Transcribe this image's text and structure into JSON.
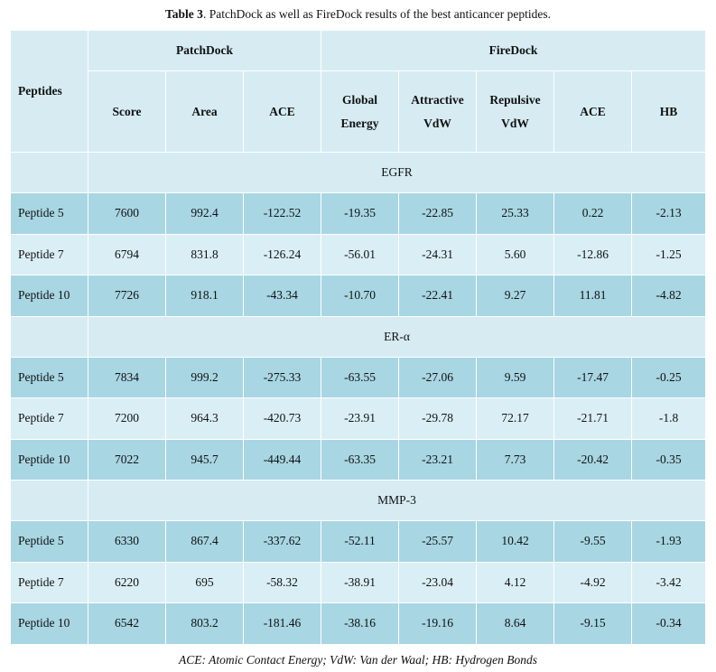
{
  "caption": {
    "label": "Table 3",
    "text": ". PatchDock as well as FireDock results of the best anticancer peptides."
  },
  "headers": {
    "peptides": "Peptides",
    "patchdock": "PatchDock",
    "firedock": "FireDock",
    "score": "Score",
    "area": "Area",
    "ace_pd": "ACE",
    "global_line1": "Global",
    "global_line2": "Energy",
    "attr_line1": "Attractive",
    "attr_line2": "VdW",
    "rep_line1": "Repulsive",
    "rep_line2": "VdW",
    "ace_fd": "ACE",
    "hb": "HB"
  },
  "sections": [
    {
      "name": "EGFR",
      "rows": [
        [
          "Peptide 5",
          "7600",
          "992.4",
          "-122.52",
          "-19.35",
          "-22.85",
          "25.33",
          "0.22",
          "-2.13"
        ],
        [
          "Peptide 7",
          "6794",
          "831.8",
          "-126.24",
          "-56.01",
          "-24.31",
          "5.60",
          "-12.86",
          "-1.25"
        ],
        [
          "Peptide 10",
          "7726",
          "918.1",
          "-43.34",
          "-10.70",
          "-22.41",
          "9.27",
          "11.81",
          "-4.82"
        ]
      ]
    },
    {
      "name": "ER-α",
      "rows": [
        [
          "Peptide 5",
          "7834",
          "999.2",
          "-275.33",
          "-63.55",
          "-27.06",
          "9.59",
          "-17.47",
          "-0.25"
        ],
        [
          "Peptide 7",
          "7200",
          "964.3",
          "-420.73",
          "-23.91",
          "-29.78",
          "72.17",
          "-21.71",
          "-1.8"
        ],
        [
          "Peptide 10",
          "7022",
          "945.7",
          "-449.44",
          "-63.35",
          "-23.21",
          "7.73",
          "-20.42",
          "-0.35"
        ]
      ]
    },
    {
      "name": "MMP-3",
      "rows": [
        [
          "Peptide 5",
          "6330",
          "867.4",
          "-337.62",
          "-52.11",
          "-25.57",
          "10.42",
          "-9.55",
          "-1.93"
        ],
        [
          "Peptide 7",
          "6220",
          "695",
          "-58.32",
          "-38.91",
          "-23.04",
          "4.12",
          "-4.92",
          "-3.42"
        ],
        [
          "Peptide 10",
          "6542",
          "803.2",
          "-181.46",
          "-38.16",
          "-19.16",
          "8.64",
          "-9.15",
          "-0.34"
        ]
      ]
    }
  ],
  "footnote": "ACE: Atomic Contact Energy; VdW: Van der Waal; HB: Hydrogen Bonds"
}
